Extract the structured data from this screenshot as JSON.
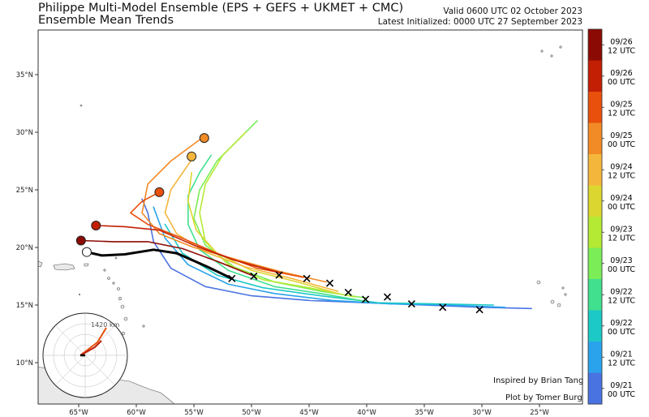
{
  "header": {
    "title": "Philippe Multi-Model Ensemble (EPS + GEFS + UKMET + CMC)",
    "subtitle": "Ensemble Mean Trends",
    "valid": "Valid 0600 UTC 02 October 2023",
    "latest_init": "Latest Initialized: 0000 UTC 27 September 2023"
  },
  "map": {
    "lon_ticks": [
      "65°W",
      "60°W",
      "55°W",
      "50°W",
      "45°W",
      "40°W",
      "35°W",
      "30°W",
      "25°W"
    ],
    "lat_ticks": [
      "35°N",
      "30°N",
      "25°N",
      "20°N",
      "15°N",
      "10°N"
    ],
    "credit_1": "Inspired by Brian Tang",
    "credit_2": "Plot by Tomer Burg",
    "inset_label": "1420 km"
  },
  "colorbar": {
    "labels": [
      {
        "date": "09/26",
        "time": "12 UTC"
      },
      {
        "date": "09/26",
        "time": "00 UTC"
      },
      {
        "date": "09/25",
        "time": "12 UTC"
      },
      {
        "date": "09/25",
        "time": "00 UTC"
      },
      {
        "date": "09/24",
        "time": "12 UTC"
      },
      {
        "date": "09/24",
        "time": "00 UTC"
      },
      {
        "date": "09/23",
        "time": "12 UTC"
      },
      {
        "date": "09/23",
        "time": "00 UTC"
      },
      {
        "date": "09/22",
        "time": "12 UTC"
      },
      {
        "date": "09/22",
        "time": "00 UTC"
      },
      {
        "date": "09/21",
        "time": "12 UTC"
      },
      {
        "date": "09/21",
        "time": "00 UTC"
      }
    ],
    "colors": [
      "#8b0a03",
      "#c21f05",
      "#e8500c",
      "#f28a25",
      "#f5b63c",
      "#dcd630",
      "#b4ea33",
      "#7bed57",
      "#40e08e",
      "#1cc9c6",
      "#2aa3ec",
      "#4a73e2"
    ]
  },
  "tracks": [
    {
      "color": "#4a73e2",
      "pts": [
        [
          -25.7,
          14.7
        ],
        [
          -30,
          14.8
        ],
        [
          -35,
          15.0
        ],
        [
          -40,
          15.2
        ],
        [
          -45,
          15.4
        ],
        [
          -50,
          15.8
        ],
        [
          -54,
          16.6
        ],
        [
          -57,
          18.2
        ],
        [
          -58.5,
          20.5
        ],
        [
          -59,
          23.0
        ],
        [
          -59.5,
          24.2
        ]
      ]
    },
    {
      "color": "#2aa3ec",
      "pts": [
        [
          -28,
          14.8
        ],
        [
          -33,
          15.0
        ],
        [
          -38,
          15.1
        ],
        [
          -43,
          15.4
        ],
        [
          -48,
          16.0
        ],
        [
          -52,
          16.8
        ],
        [
          -55.5,
          18.5
        ],
        [
          -57.5,
          20.8
        ],
        [
          -58.5,
          23.5
        ]
      ]
    },
    {
      "color": "#1cc9c6",
      "pts": [
        [
          -29,
          15.0
        ],
        [
          -34,
          15.1
        ],
        [
          -39,
          15.2
        ],
        [
          -44,
          15.8
        ],
        [
          -49,
          16.5
        ],
        [
          -53,
          17.6
        ],
        [
          -56,
          19.5
        ],
        [
          -57.5,
          22.0
        ]
      ]
    },
    {
      "color": "#40e08e",
      "pts": [
        [
          -40,
          15.3
        ],
        [
          -44,
          16.0
        ],
        [
          -48,
          16.6
        ],
        [
          -52,
          18.0
        ],
        [
          -54.5,
          19.8
        ],
        [
          -55.5,
          22.0
        ],
        [
          -55.5,
          24.5
        ],
        [
          -54.5,
          26.5
        ],
        [
          -53.5,
          28.0
        ]
      ]
    },
    {
      "color": "#7bed57",
      "pts": [
        [
          -40,
          15.6
        ],
        [
          -44,
          16.2
        ],
        [
          -48,
          17.0
        ],
        [
          -51.5,
          18.3
        ],
        [
          -54,
          20.2
        ],
        [
          -55,
          22.5
        ],
        [
          -54.5,
          25.0
        ],
        [
          -53,
          27.5
        ],
        [
          -51,
          29.5
        ],
        [
          -49.5,
          31.0
        ]
      ]
    },
    {
      "color": "#b4ea33",
      "pts": [
        [
          -41,
          15.7
        ],
        [
          -45,
          16.5
        ],
        [
          -49,
          17.2
        ],
        [
          -52,
          18.5
        ],
        [
          -54,
          20.5
        ],
        [
          -54.5,
          23.0
        ],
        [
          -54,
          25.5
        ],
        [
          -52.5,
          28.0
        ],
        [
          -50.5,
          30.0
        ]
      ]
    },
    {
      "color": "#dcd630",
      "pts": [
        [
          -42.5,
          16.0
        ],
        [
          -46,
          17.0
        ],
        [
          -50,
          18.0
        ],
        [
          -53,
          19.5
        ],
        [
          -54.8,
          21.5
        ],
        [
          -55.5,
          24.0
        ],
        [
          -55.2,
          26.5
        ]
      ]
    },
    {
      "color": "#f5b63c",
      "pts": [
        [
          -42.5,
          16.2
        ],
        [
          -46.5,
          17.3
        ],
        [
          -50.5,
          18.3
        ],
        [
          -54,
          19.6
        ],
        [
          -56.5,
          21.2
        ],
        [
          -57.5,
          23.0
        ],
        [
          -57,
          25.0
        ],
        [
          -55,
          27.9
        ]
      ]
    },
    {
      "color": "#f28a25",
      "pts": [
        [
          -43.5,
          17.0
        ],
        [
          -47.5,
          17.9
        ],
        [
          -51.5,
          19.0
        ],
        [
          -55,
          20.0
        ],
        [
          -58,
          21.2
        ],
        [
          -59.5,
          23.0
        ],
        [
          -59,
          25.5
        ],
        [
          -57,
          27.5
        ],
        [
          -54.3,
          29.5
        ]
      ]
    },
    {
      "color": "#e8500c",
      "pts": [
        [
          -45.5,
          17.4
        ],
        [
          -49.5,
          18.2
        ],
        [
          -53,
          19.5
        ],
        [
          -56,
          20.8
        ],
        [
          -59,
          22.0
        ],
        [
          -60.5,
          23.0
        ],
        [
          -59.5,
          24.0
        ],
        [
          -58,
          24.8
        ]
      ]
    },
    {
      "color": "#c21f05",
      "pts": [
        [
          -47.5,
          17.8
        ],
        [
          -51.5,
          18.9
        ],
        [
          -55,
          20.2
        ],
        [
          -58,
          21.5
        ],
        [
          -61,
          21.8
        ],
        [
          -63.5,
          21.9
        ]
      ]
    },
    {
      "color": "#8b0a03",
      "pts": [
        [
          -50,
          17.6
        ],
        [
          -53,
          18.8
        ],
        [
          -56,
          19.9
        ],
        [
          -59,
          20.5
        ],
        [
          -62,
          20.5
        ],
        [
          -64.8,
          20.6
        ]
      ]
    },
    {
      "color": "#000000",
      "pts": [
        [
          -51.7,
          17.3
        ],
        [
          -54,
          18.4
        ],
        [
          -56.5,
          19.5
        ],
        [
          -58.5,
          19.8
        ],
        [
          -61,
          19.4
        ],
        [
          -63,
          19.3
        ],
        [
          -64.3,
          19.6
        ]
      ],
      "width": 3
    }
  ],
  "endpoints": [
    {
      "lon": -54.1,
      "lat": 29.5,
      "color": "#f28a25"
    },
    {
      "lon": -55.2,
      "lat": 27.9,
      "color": "#f5b63c"
    },
    {
      "lon": -58.0,
      "lat": 24.8,
      "color": "#e8500c"
    },
    {
      "lon": -63.5,
      "lat": 21.9,
      "color": "#c21f05"
    },
    {
      "lon": -64.8,
      "lat": 20.6,
      "color": "#8b0a03"
    },
    {
      "lon": -64.3,
      "lat": 19.6,
      "color": "#ffffff"
    }
  ],
  "x_marks": [
    [
      -51.7,
      17.3
    ],
    [
      -49.8,
      17.5
    ],
    [
      -47.6,
      17.6
    ],
    [
      -45.2,
      17.3
    ],
    [
      -43.2,
      16.9
    ],
    [
      -41.6,
      16.1
    ],
    [
      -40.1,
      15.5
    ],
    [
      -38.2,
      15.7
    ],
    [
      -36.1,
      15.1
    ],
    [
      -33.4,
      14.8
    ],
    [
      -30.2,
      14.6
    ]
  ]
}
